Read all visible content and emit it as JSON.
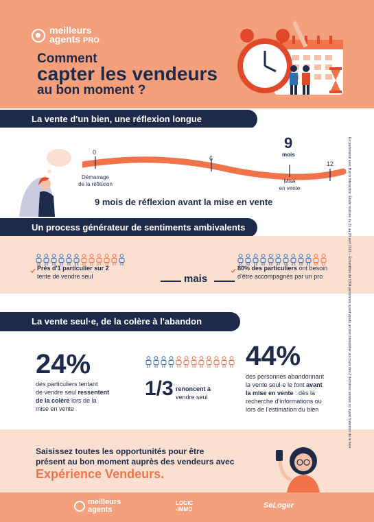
{
  "header": {
    "logo_line1": "meilleurs",
    "logo_line2": "agents",
    "logo_pro": "PRO",
    "title_line1": "Comment",
    "title_line2": "capter les vendeurs",
    "title_line3": "au bon moment ?"
  },
  "section1": {
    "bar_label": "La vente d'un bien, une réflexion longue",
    "timeline": {
      "ticks": [
        "0",
        "6",
        "12"
      ],
      "highlight_value": "9",
      "highlight_unit": "mois",
      "start_label_line1": "Démarrage",
      "start_label_line2": "de la réflexion",
      "end_label_line1": "Mise",
      "end_label_line2": "en vente"
    },
    "summary": "9 mois de réflexion avant la mise en vente"
  },
  "section2": {
    "bar_label": "Un process générateur de sentiments ambivalents",
    "left_bold": "Près d'1 particulier sur 2",
    "left_rest": "tente de vendre seul",
    "middle": "mais",
    "right_bold": "80% des particuliers",
    "right_rest1": "ont besoin",
    "right_rest2": "d'être accompagnés par un pro"
  },
  "section3": {
    "bar_label": "La vente seul·e, de la colère à l'abandon",
    "stat1": "24%",
    "stat1_line1": "des particuliers tentant",
    "stat1_line2a": "de vendre seul ",
    "stat1_line2b": "ressentent",
    "stat1_line3a": "de la colère",
    "stat1_line3b": " lors de la",
    "stat1_line4": "mise en vente",
    "stat2": "1/3",
    "stat2_line1": "renoncent à",
    "stat2_line2": "vendre seul",
    "stat3": "44%",
    "stat3_line1": "des personnes abandonnant",
    "stat3_line2a": "la vente seul·e le font ",
    "stat3_line2b": "avant",
    "stat3_line3a": "la mise en vente",
    "stat3_line3b": " : dès la",
    "stat3_line4": "recherche d'informations ou",
    "stat3_line5": "lors de l'estimation du bien"
  },
  "section4": {
    "line1": "Saisissez toutes les opportunités pour être",
    "line2": "présent au bon moment auprès des vendeurs avec",
    "highlight": "Expérience Vendeurs."
  },
  "footer": {
    "brand1_line1": "meilleurs",
    "brand1_line2": "agents",
    "brand2_line1": "LOGIC",
    "brand2_line2": "-IMMO",
    "brand3": "SeLoger"
  },
  "side_note": "En partenariat avec Harris Interactive. Étude réalisée du 21 au 28 avril 2021 – Échantillon de 1304 personnes ayant vendu un bien immobilier au cours des 2 dernières années ou ayant l'intention de le faire.",
  "colors": {
    "navy": "#1e2a4a",
    "orange": "#f2734a",
    "peach": "#f4a07c",
    "light_peach": "#fbe0d2"
  }
}
